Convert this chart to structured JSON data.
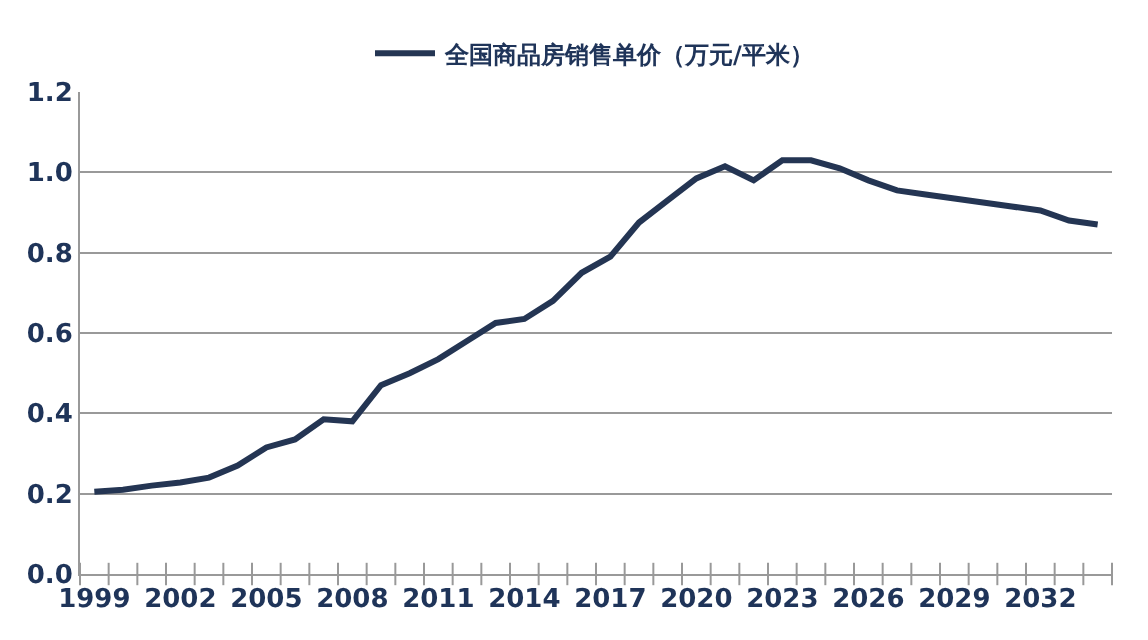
{
  "chart_data": {
    "type": "line",
    "categories": [
      "1999",
      null,
      null,
      "2002",
      null,
      null,
      "2005",
      null,
      null,
      "2008",
      null,
      null,
      "2011",
      null,
      null,
      "2014",
      null,
      null,
      "2017",
      null,
      null,
      "2020",
      null,
      null,
      "2023",
      null,
      null,
      "2026",
      null,
      null,
      "2029",
      null,
      null,
      "2032",
      null,
      null
    ],
    "series": [
      {
        "name": "全国商品房销售单价（万元/平米）",
        "color": "#243553",
        "values": [
          0.205,
          0.21,
          0.22,
          0.228,
          0.24,
          0.27,
          0.315,
          0.335,
          0.385,
          0.38,
          0.47,
          0.5,
          0.535,
          0.58,
          0.625,
          0.635,
          0.68,
          0.75,
          0.79,
          0.875,
          0.93,
          0.985,
          1.015,
          0.98,
          1.03,
          1.03,
          1.01,
          0.98,
          0.955,
          0.945,
          0.935,
          0.925,
          0.915,
          0.905,
          0.88,
          0.87
        ]
      }
    ],
    "ylim": [
      0,
      1.2
    ],
    "yticks": [
      {
        "value": 0,
        "label": "0.0"
      },
      0.2,
      0.4,
      0.6,
      0.8,
      {
        "value": 1,
        "label": "1.0"
      },
      1.2
    ],
    "grid": "y",
    "legend": "top",
    "marker": "none",
    "line_style": "solid"
  }
}
